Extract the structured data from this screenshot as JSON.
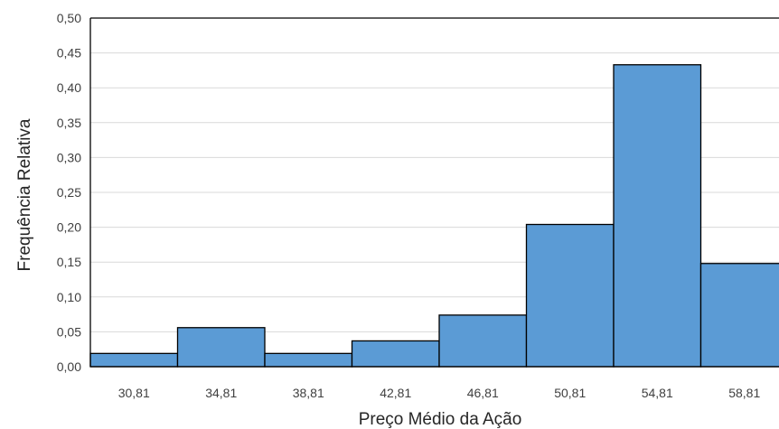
{
  "chart_data": {
    "type": "bar",
    "xlabel": "Preço Médio da Ação",
    "ylabel": "Frequência Relativa",
    "categories": [
      "30,81",
      "34,81",
      "38,81",
      "42,81",
      "46,81",
      "50,81",
      "54,81",
      "58,81"
    ],
    "values": [
      0.019,
      0.056,
      0.019,
      0.037,
      0.074,
      0.204,
      0.433,
      0.148
    ],
    "ylim": [
      0,
      0.5
    ],
    "yticks": [
      "0,00",
      "0,05",
      "0,10",
      "0,15",
      "0,20",
      "0,25",
      "0,30",
      "0,35",
      "0,40",
      "0,45",
      "0,50"
    ],
    "grid": true,
    "bar_color": "#5b9bd5",
    "bar_edge_color": "#000000"
  }
}
